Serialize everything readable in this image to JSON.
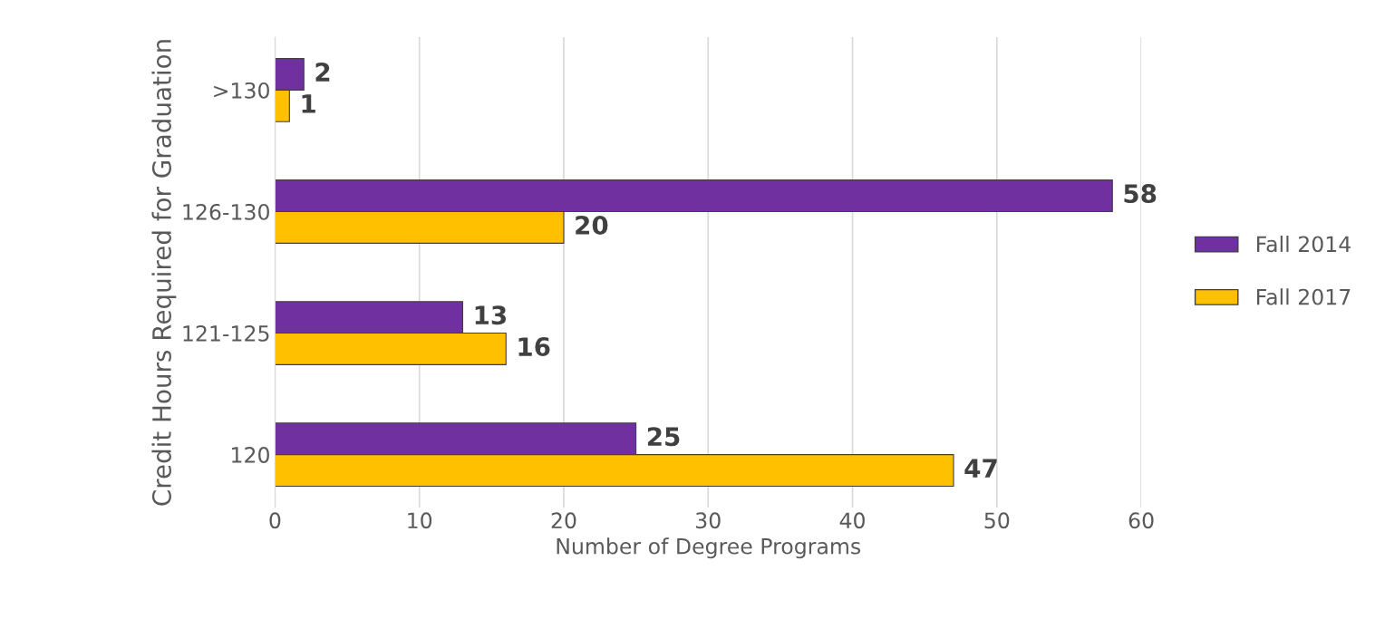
{
  "chart_data": {
    "type": "bar",
    "orientation": "horizontal",
    "xlabel": "Number of Degree Programs",
    "ylabel": "Credit Hours Required for Graduation",
    "categories": [
      ">130",
      "126-130",
      "121-125",
      "120"
    ],
    "series": [
      {
        "name": "Fall 2014",
        "color": "#7030a0",
        "values": [
          2,
          58,
          13,
          25
        ]
      },
      {
        "name": "Fall 2017",
        "color": "#ffc000",
        "values": [
          1,
          20,
          16,
          47
        ]
      }
    ],
    "xlim": [
      0,
      60
    ],
    "xticks": [
      0,
      10,
      20,
      30,
      40,
      50,
      60
    ],
    "grid": "x",
    "legend": "right",
    "data_labels": true
  }
}
